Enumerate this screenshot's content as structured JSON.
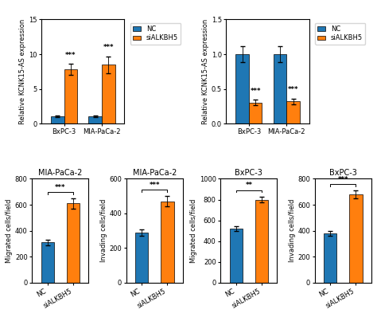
{
  "chart_data": [
    {
      "type": "bar",
      "ylabel": "Relative KCNK15-AS expression",
      "categories": [
        "BxPC-3",
        "MIA-PaCa-2"
      ],
      "series": [
        {
          "name": "NC",
          "color": "#1f77b4",
          "values": [
            1.0,
            1.0
          ],
          "errors": [
            0.1,
            0.1
          ]
        },
        {
          "name": "siALKBH5",
          "color": "#ff7f0e",
          "values": [
            7.8,
            8.5
          ],
          "errors": [
            0.8,
            1.2
          ],
          "annotations": [
            "***",
            "***"
          ]
        }
      ],
      "ylim": [
        0,
        15
      ],
      "yticks": [
        0,
        5,
        10,
        15
      ],
      "legend": "upper right",
      "grid": false
    },
    {
      "type": "bar",
      "ylabel": "Relative KCNK15-AS expression",
      "categories": [
        "BxPC-3",
        "MIA-PaCa-2"
      ],
      "series": [
        {
          "name": "NC",
          "color": "#1f77b4",
          "values": [
            1.0,
            1.0
          ],
          "errors": [
            0.12,
            0.12
          ]
        },
        {
          "name": "siALKBH5",
          "color": "#ff7f0e",
          "values": [
            0.3,
            0.32
          ],
          "errors": [
            0.04,
            0.04
          ],
          "annotations": [
            "***",
            "***"
          ]
        }
      ],
      "ylim": [
        0,
        1.5
      ],
      "yticks": [
        {
          "value": 0,
          "label": "0.0"
        },
        0.5,
        {
          "value": 1,
          "label": "1.0"
        },
        1.5
      ],
      "legend": "upper right",
      "grid": false
    },
    {
      "type": "bar",
      "title": "MIA-PaCa-2",
      "ylabel": "Migrated cells/field",
      "categories": [
        "NC",
        "siALKBH5"
      ],
      "values": [
        310,
        610
      ],
      "errors": [
        20,
        40
      ],
      "colors": [
        "#1f77b4",
        "#ff7f0e"
      ],
      "annotations": [
        "***"
      ],
      "ylim": [
        0,
        800
      ],
      "yticks": [
        0,
        200,
        400,
        600,
        800
      ],
      "grid": false
    },
    {
      "type": "bar",
      "title": "MIA-PaCa-2",
      "ylabel": "Invading cells/field",
      "categories": [
        "NC",
        "siALKBH5"
      ],
      "values": [
        290,
        470
      ],
      "errors": [
        20,
        30
      ],
      "colors": [
        "#1f77b4",
        "#ff7f0e"
      ],
      "annotations": [
        "***"
      ],
      "ylim": [
        0,
        600
      ],
      "yticks": [
        0,
        200,
        400,
        600
      ],
      "grid": false
    },
    {
      "type": "bar",
      "title": "BxPC-3",
      "ylabel": "Migrated cells/field",
      "categories": [
        "NC",
        "siALKBH5"
      ],
      "values": [
        520,
        800
      ],
      "errors": [
        25,
        30
      ],
      "colors": [
        "#1f77b4",
        "#ff7f0e"
      ],
      "annotations": [
        "**"
      ],
      "ylim": [
        0,
        1000
      ],
      "yticks": [
        0,
        200,
        400,
        600,
        800,
        1000
      ],
      "grid": false
    },
    {
      "type": "bar",
      "title": "BxPC-3",
      "ylabel": "Invading cells/field",
      "categories": [
        "NC",
        "siALKBH5"
      ],
      "values": [
        380,
        680
      ],
      "errors": [
        20,
        30
      ],
      "colors": [
        "#1f77b4",
        "#ff7f0e"
      ],
      "annotations": [
        "***"
      ],
      "ylim": [
        0,
        800
      ],
      "yticks": [
        0,
        200,
        400,
        600,
        800
      ],
      "grid": false
    }
  ]
}
